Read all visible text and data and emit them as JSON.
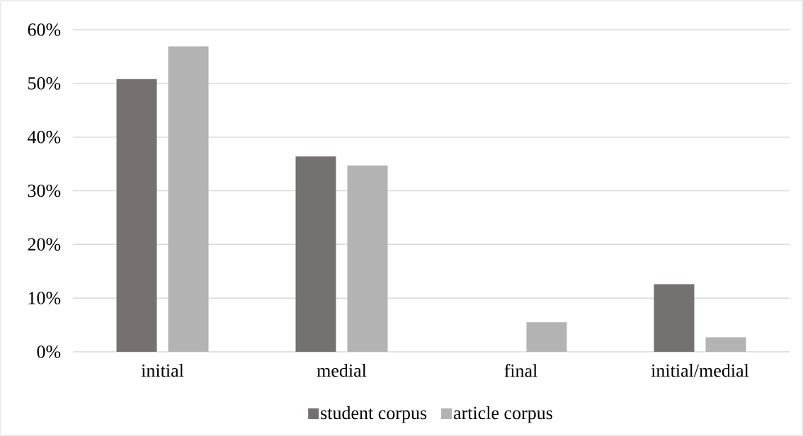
{
  "chart_data": {
    "type": "bar",
    "categories": [
      "initial",
      "medial",
      "final",
      "initial/medial"
    ],
    "series": [
      {
        "name": "student corpus",
        "color": "#757171",
        "values": [
          50.8,
          36.4,
          0,
          12.6
        ]
      },
      {
        "name": "article corpus",
        "color": "#b3b3b3",
        "values": [
          56.9,
          34.7,
          5.5,
          2.7
        ]
      }
    ],
    "ylim": [
      0,
      60
    ],
    "yticks": [
      {
        "value": 0,
        "label": "0%"
      },
      {
        "value": 10,
        "label": "10%"
      },
      {
        "value": 20,
        "label": "20%"
      },
      {
        "value": 30,
        "label": "30%"
      },
      {
        "value": 40,
        "label": "40%"
      },
      {
        "value": 50,
        "label": "50%"
      },
      {
        "value": 60,
        "label": "60%"
      }
    ],
    "grid": "y",
    "legend": "bottom"
  }
}
